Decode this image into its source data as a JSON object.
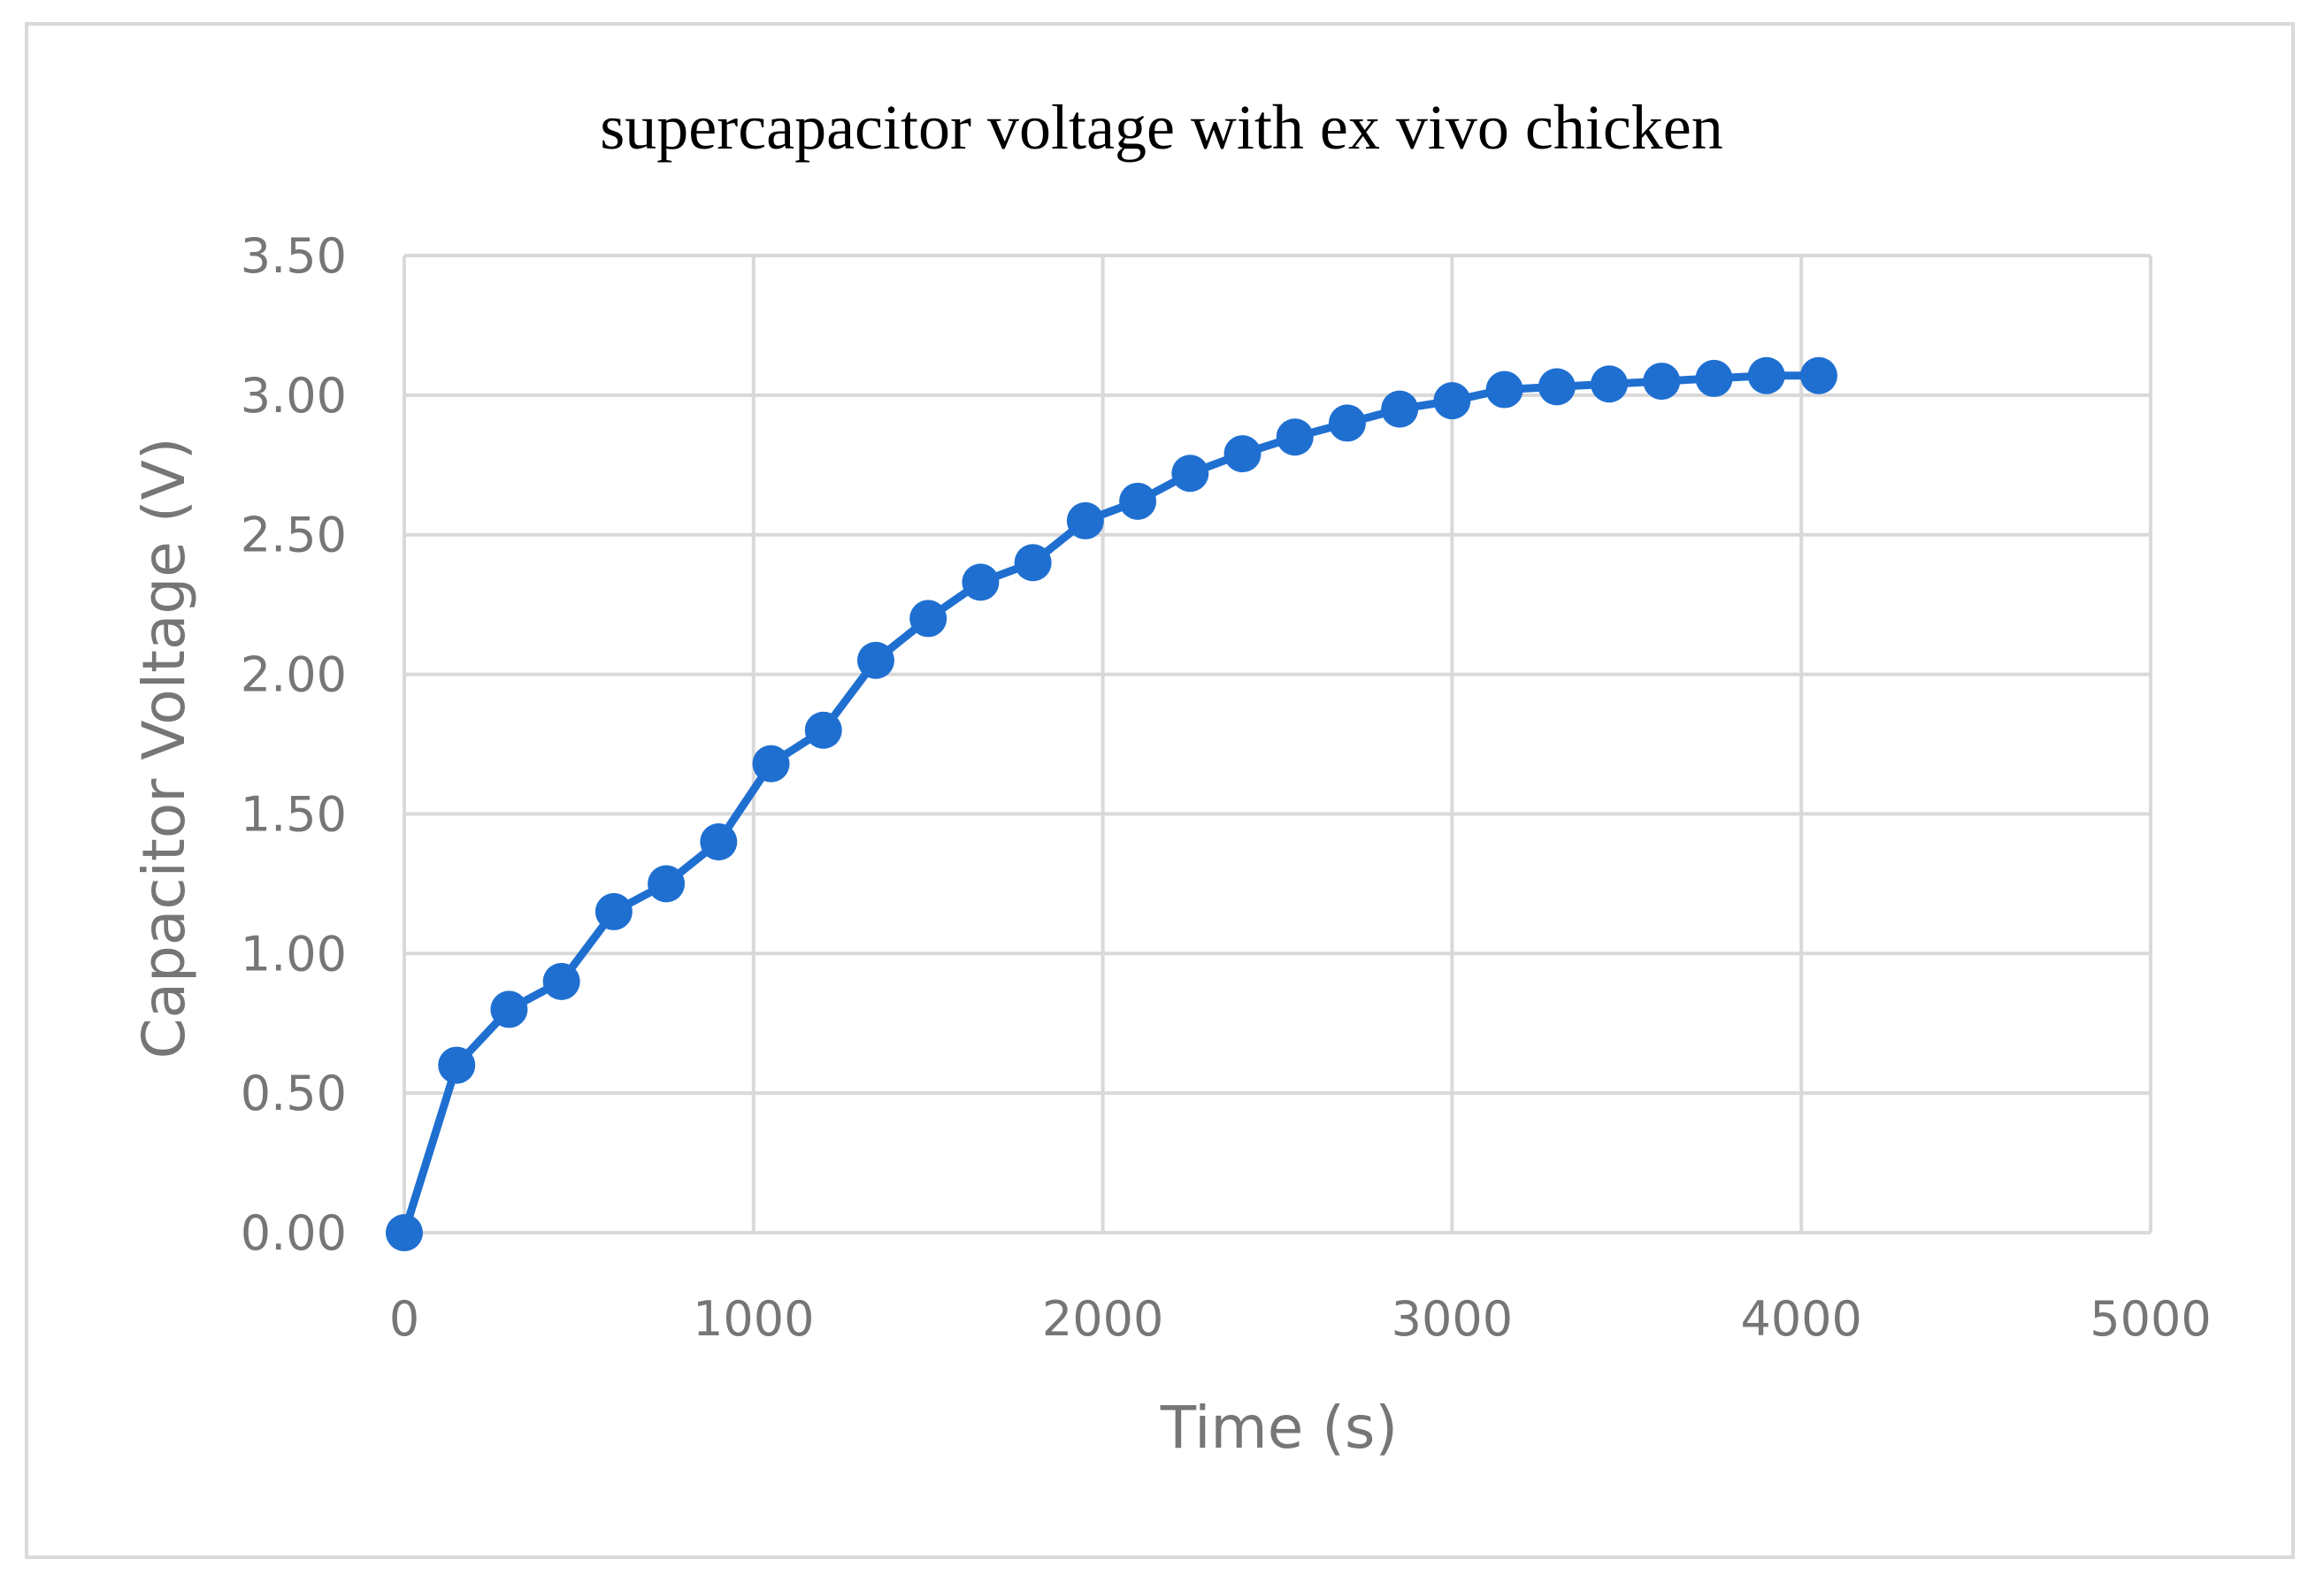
{
  "chart_data": {
    "type": "line",
    "title": "supercapacitor voltage with ex vivo chicken",
    "xlabel": "Time (s)",
    "ylabel": "Capacitor Voltage (V)",
    "xlim": [
      0,
      5000
    ],
    "ylim": [
      0,
      3.5
    ],
    "x_ticks": [
      0,
      1000,
      2000,
      3000,
      4000,
      5000
    ],
    "y_ticks": [
      0,
      0.5,
      1.0,
      1.5,
      2.0,
      2.5,
      3.0,
      3.5
    ],
    "x_tick_labels": [
      "0",
      "1000",
      "2000",
      "3000",
      "4000",
      "5000"
    ],
    "y_tick_labels": [
      "0.00",
      "0.50",
      "1.00",
      "1.50",
      "2.00",
      "2.50",
      "3.00",
      "3.50"
    ],
    "grid": true,
    "markers": true,
    "series": [
      {
        "color": "#1f6fd1",
        "x": [
          0,
          150,
          300,
          450,
          600,
          750,
          900,
          1050,
          1200,
          1350,
          1500,
          1650,
          1800,
          1950,
          2100,
          2250,
          2400,
          2550,
          2700,
          2850,
          3000,
          3150,
          3300,
          3450,
          3600,
          3750,
          3900,
          4050
        ],
        "y": [
          0.0,
          0.6,
          0.8,
          0.9,
          1.15,
          1.25,
          1.4,
          1.68,
          1.8,
          2.05,
          2.2,
          2.33,
          2.4,
          2.55,
          2.62,
          2.72,
          2.79,
          2.85,
          2.9,
          2.95,
          2.98,
          3.02,
          3.03,
          3.04,
          3.05,
          3.06,
          3.07,
          3.07
        ]
      }
    ]
  },
  "colors": {
    "grid": "#d9d9d9",
    "tick_text": "#767676",
    "frame": "#d9d9d9"
  }
}
